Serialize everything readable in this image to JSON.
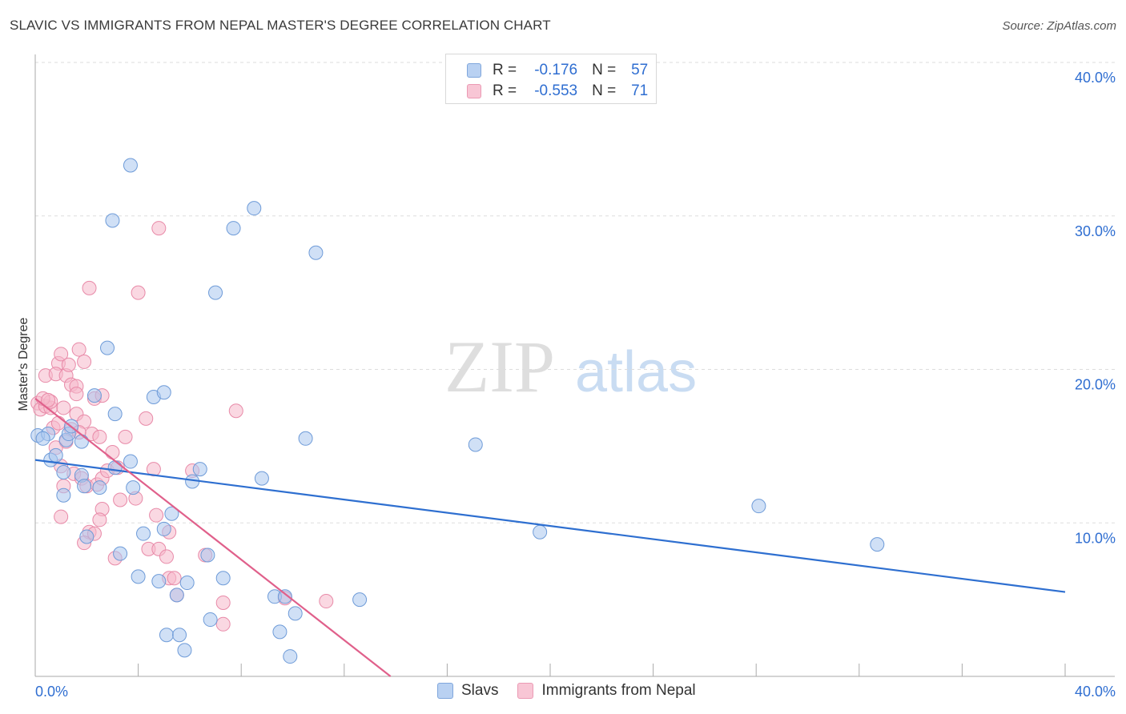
{
  "title": "SLAVIC VS IMMIGRANTS FROM NEPAL MASTER'S DEGREE CORRELATION CHART",
  "source": "Source: ZipAtlas.com",
  "watermark": {
    "zip": "ZIP",
    "atlas": "atlas"
  },
  "colors": {
    "blue_fill": "#a9c6ee",
    "blue_stroke": "#6e9bd8",
    "blue_line": "#2e6fd0",
    "pink_fill": "#f6b8cb",
    "pink_stroke": "#e88aa8",
    "pink_line": "#e0608b",
    "axis_label": "#2f6ed1",
    "grid": "#dddddd"
  },
  "legend": {
    "r_label": "R =",
    "n_label": "N =",
    "series": [
      {
        "name": "Slavs",
        "r": "-0.176",
        "n": "57"
      },
      {
        "name": "Immigrants from Nepal",
        "r": "-0.553",
        "n": "71"
      }
    ]
  },
  "chart_data": {
    "type": "scatter",
    "title": "SLAVIC VS IMMIGRANTS FROM NEPAL MASTER'S DEGREE CORRELATION CHART",
    "xlabel": "",
    "ylabel": "Master's Degree",
    "xlim": [
      0,
      40
    ],
    "ylim": [
      0,
      40
    ],
    "x_tick_labels": [
      "0.0%",
      "40.0%"
    ],
    "y_ticks": [
      10,
      20,
      30,
      40
    ],
    "y_tick_labels": [
      "10.0%",
      "20.0%",
      "30.0%",
      "40.0%"
    ],
    "grid": true,
    "series": [
      {
        "name": "Slavs",
        "trend": {
          "x0": 0,
          "y0": 14.1,
          "x1": 40,
          "y1": 5.5
        },
        "points": [
          [
            0.1,
            15.7
          ],
          [
            0.5,
            15.8
          ],
          [
            0.3,
            15.5
          ],
          [
            0.6,
            14.1
          ],
          [
            0.8,
            14.4
          ],
          [
            1.2,
            15.4
          ],
          [
            1.3,
            15.8
          ],
          [
            1.4,
            16.3
          ],
          [
            1.1,
            13.3
          ],
          [
            1.8,
            13.1
          ],
          [
            1.9,
            12.4
          ],
          [
            2.5,
            12.3
          ],
          [
            1.1,
            11.8
          ],
          [
            2.0,
            9.1
          ],
          [
            3.3,
            8.0
          ],
          [
            2.3,
            18.3
          ],
          [
            2.8,
            21.4
          ],
          [
            3.1,
            17.1
          ],
          [
            3.7,
            14.0
          ],
          [
            3.1,
            13.6
          ],
          [
            3.8,
            12.3
          ],
          [
            4.2,
            9.3
          ],
          [
            4.6,
            18.2
          ],
          [
            5.0,
            18.5
          ],
          [
            5.0,
            9.6
          ],
          [
            5.3,
            10.6
          ],
          [
            4.0,
            6.5
          ],
          [
            4.8,
            6.2
          ],
          [
            5.5,
            5.3
          ],
          [
            5.9,
            6.1
          ],
          [
            5.1,
            2.7
          ],
          [
            5.6,
            2.7
          ],
          [
            5.8,
            1.7
          ],
          [
            6.1,
            12.7
          ],
          [
            6.4,
            13.5
          ],
          [
            6.7,
            7.9
          ],
          [
            6.8,
            3.7
          ],
          [
            7.3,
            6.4
          ],
          [
            7.0,
            25.0
          ],
          [
            7.7,
            29.2
          ],
          [
            8.5,
            30.5
          ],
          [
            8.8,
            12.9
          ],
          [
            9.3,
            5.2
          ],
          [
            9.7,
            5.2
          ],
          [
            9.5,
            2.9
          ],
          [
            10.1,
            4.1
          ],
          [
            9.9,
            1.3
          ],
          [
            10.5,
            15.5
          ],
          [
            10.9,
            27.6
          ],
          [
            12.6,
            5.0
          ],
          [
            17.1,
            15.1
          ],
          [
            3.0,
            29.7
          ],
          [
            3.7,
            33.3
          ],
          [
            19.6,
            9.4
          ],
          [
            28.1,
            11.1
          ],
          [
            32.7,
            8.6
          ],
          [
            1.8,
            15.3
          ]
        ]
      },
      {
        "name": "Immigrants from Nepal",
        "trend": {
          "x0": 0,
          "y0": 18.1,
          "x1": 13.8,
          "y1": 0
        },
        "points": [
          [
            0.1,
            17.8
          ],
          [
            0.2,
            17.4
          ],
          [
            0.4,
            17.6
          ],
          [
            0.6,
            17.5
          ],
          [
            0.4,
            19.6
          ],
          [
            0.6,
            17.9
          ],
          [
            0.9,
            20.4
          ],
          [
            0.8,
            19.7
          ],
          [
            1.0,
            21.0
          ],
          [
            1.2,
            19.6
          ],
          [
            1.3,
            20.3
          ],
          [
            1.4,
            19.0
          ],
          [
            1.6,
            18.9
          ],
          [
            1.7,
            21.3
          ],
          [
            1.9,
            20.5
          ],
          [
            2.3,
            18.1
          ],
          [
            2.6,
            18.3
          ],
          [
            1.6,
            18.4
          ],
          [
            0.7,
            16.2
          ],
          [
            0.9,
            16.5
          ],
          [
            1.1,
            17.5
          ],
          [
            1.4,
            16.1
          ],
          [
            1.6,
            17.1
          ],
          [
            1.9,
            16.6
          ],
          [
            2.2,
            15.8
          ],
          [
            2.5,
            15.6
          ],
          [
            1.2,
            15.3
          ],
          [
            0.8,
            14.9
          ],
          [
            1.0,
            13.7
          ],
          [
            1.5,
            13.2
          ],
          [
            1.8,
            12.9
          ],
          [
            2.0,
            12.4
          ],
          [
            2.4,
            12.5
          ],
          [
            2.6,
            12.9
          ],
          [
            2.8,
            13.4
          ],
          [
            3.2,
            13.6
          ],
          [
            3.5,
            15.6
          ],
          [
            1.1,
            12.4
          ],
          [
            1.0,
            10.4
          ],
          [
            2.6,
            10.9
          ],
          [
            2.5,
            10.2
          ],
          [
            3.3,
            11.5
          ],
          [
            3.9,
            11.6
          ],
          [
            2.1,
            9.4
          ],
          [
            2.3,
            9.3
          ],
          [
            1.9,
            8.7
          ],
          [
            3.1,
            7.7
          ],
          [
            4.4,
            8.3
          ],
          [
            4.8,
            8.3
          ],
          [
            4.7,
            10.5
          ],
          [
            5.2,
            9.4
          ],
          [
            4.6,
            13.5
          ],
          [
            4.3,
            16.8
          ],
          [
            5.2,
            6.4
          ],
          [
            5.4,
            6.4
          ],
          [
            5.5,
            5.3
          ],
          [
            6.1,
            13.4
          ],
          [
            6.6,
            7.9
          ],
          [
            7.3,
            4.8
          ],
          [
            7.3,
            3.4
          ],
          [
            9.7,
            5.1
          ],
          [
            11.3,
            4.9
          ],
          [
            7.8,
            17.3
          ],
          [
            2.1,
            25.3
          ],
          [
            4.0,
            25.0
          ],
          [
            4.8,
            29.2
          ],
          [
            0.3,
            18.1
          ],
          [
            3.0,
            14.6
          ],
          [
            1.7,
            15.9
          ],
          [
            5.1,
            7.8
          ],
          [
            0.5,
            18.0
          ]
        ]
      }
    ]
  }
}
